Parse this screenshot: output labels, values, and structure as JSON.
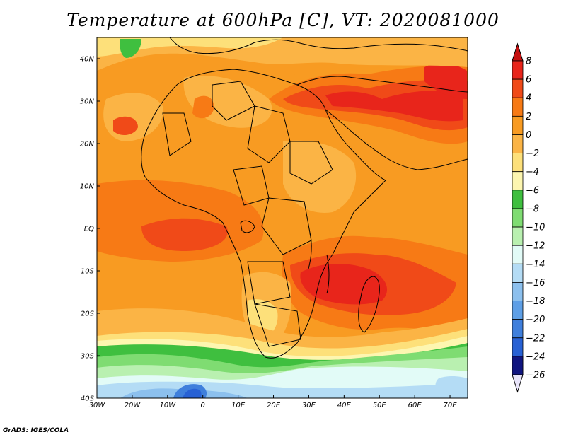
{
  "title": "Temperature at 600hPa [C], VT: 2020081000",
  "credit": "GrADS: IGES/COLA",
  "map": {
    "lon_range": [
      -30,
      75
    ],
    "lat_range": [
      -40,
      45
    ],
    "x_ticks": [
      {
        "lon": -30,
        "label": "30W"
      },
      {
        "lon": -20,
        "label": "20W"
      },
      {
        "lon": -10,
        "label": "10W"
      },
      {
        "lon": 0,
        "label": "0"
      },
      {
        "lon": 10,
        "label": "10E"
      },
      {
        "lon": 20,
        "label": "20E"
      },
      {
        "lon": 30,
        "label": "30E"
      },
      {
        "lon": 40,
        "label": "40E"
      },
      {
        "lon": 50,
        "label": "50E"
      },
      {
        "lon": 60,
        "label": "60E"
      },
      {
        "lon": 70,
        "label": "70E"
      }
    ],
    "y_ticks": [
      {
        "lat": 40,
        "label": "40N"
      },
      {
        "lat": 30,
        "label": "30N"
      },
      {
        "lat": 20,
        "label": "20N"
      },
      {
        "lat": 10,
        "label": "10N"
      },
      {
        "lat": 0,
        "label": "EQ"
      },
      {
        "lat": -10,
        "label": "10S"
      },
      {
        "lat": -20,
        "label": "20S"
      },
      {
        "lat": -30,
        "label": "30S"
      },
      {
        "lat": -40,
        "label": "40S"
      }
    ]
  },
  "colorbar": {
    "levels": [
      {
        "label": "8",
        "color": "#e8251b"
      },
      {
        "label": "6",
        "color": "#f04a18"
      },
      {
        "label": "4",
        "color": "#f77a15"
      },
      {
        "label": "2",
        "color": "#f89b22"
      },
      {
        "label": "0",
        "color": "#fbb445"
      },
      {
        "label": "−2",
        "color": "#fde07a"
      },
      {
        "label": "−4",
        "color": "#fdf6b0"
      },
      {
        "label": "−6",
        "color": "#3fbf3f"
      },
      {
        "label": "−8",
        "color": "#7fdc72"
      },
      {
        "label": "−10",
        "color": "#b9f0b0"
      },
      {
        "label": "−12",
        "color": "#e2fbf7"
      },
      {
        "label": "−14",
        "color": "#b4dcf5"
      },
      {
        "label": "−16",
        "color": "#8cc0ee"
      },
      {
        "label": "−18",
        "color": "#5e9fe6"
      },
      {
        "label": "−20",
        "color": "#3f7fdc"
      },
      {
        "label": "−22",
        "color": "#2861d4"
      },
      {
        "label": "−24",
        "color": "#1845bb"
      },
      {
        "label": "−26",
        "color": "#0f2f9c"
      }
    ],
    "top_arrow_color": "#c41010",
    "bottom_arrow_color": "#e8e4fa",
    "bottom_block_color": "#101580"
  }
}
